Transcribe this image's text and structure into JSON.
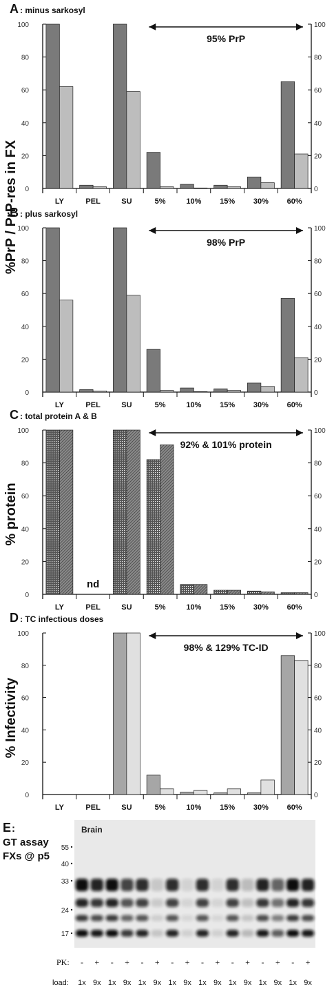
{
  "figure": {
    "y_axis_label_top": "%PrP / PrP-res in FX",
    "y_axis_label_protein": "% protein",
    "y_axis_label_infectivity": "% Infectivity"
  },
  "chart_data": [
    {
      "type": "bar",
      "panel_letter": "A",
      "title": ": minus sarkosyl",
      "annotation": "95% PrP",
      "categories": [
        "LY",
        "PEL",
        "SU",
        "5%",
        "10%",
        "15%",
        "30%",
        "60%"
      ],
      "ylim": [
        0,
        100
      ],
      "yticks": [
        0,
        20,
        40,
        60,
        80,
        100
      ],
      "series": [
        {
          "color": "#7a7a7a",
          "values": [
            100,
            2,
            100,
            22,
            2.5,
            2,
            7,
            65
          ]
        },
        {
          "color": "#bdbdbd",
          "values": [
            62,
            1,
            59,
            1,
            0.3,
            1,
            3.5,
            21
          ]
        }
      ]
    },
    {
      "type": "bar",
      "panel_letter": "B",
      "title": ": plus sarkosyl",
      "annotation": "98% PrP",
      "categories": [
        "LY",
        "PEL",
        "SU",
        "5%",
        "10%",
        "15%",
        "30%",
        "60%"
      ],
      "ylim": [
        0,
        100
      ],
      "yticks": [
        0,
        20,
        40,
        60,
        80,
        100
      ],
      "series": [
        {
          "color": "#7a7a7a",
          "values": [
            100,
            1.5,
            100,
            26,
            2.5,
            2,
            5.5,
            57
          ]
        },
        {
          "color": "#bdbdbd",
          "values": [
            56,
            0.7,
            59,
            1,
            0.3,
            1,
            3.5,
            21
          ]
        }
      ]
    },
    {
      "type": "bar",
      "panel_letter": "C",
      "title": ": total protein A & B",
      "annotation": "92% & 101% protein",
      "categories": [
        "LY",
        "PEL",
        "SU",
        "5%",
        "10%",
        "15%",
        "30%",
        "60%"
      ],
      "missing_label": "nd",
      "missing_category": "PEL",
      "ylim": [
        0,
        100
      ],
      "yticks": [
        0,
        20,
        40,
        60,
        80,
        100
      ],
      "series": [
        {
          "pattern": "dots",
          "values": [
            100,
            null,
            100,
            82,
            6,
            2.5,
            2,
            1
          ]
        },
        {
          "pattern": "hatch",
          "values": [
            100,
            null,
            100,
            91,
            6,
            2.5,
            1.5,
            1
          ]
        }
      ]
    },
    {
      "type": "bar",
      "panel_letter": "D",
      "title": ": TC infectious doses",
      "annotation": "98% & 129% TC-ID",
      "categories": [
        "LY",
        "PEL",
        "SU",
        "5%",
        "10%",
        "15%",
        "30%",
        "60%"
      ],
      "ylim": [
        0,
        100
      ],
      "yticks": [
        0,
        20,
        40,
        60,
        80,
        100
      ],
      "series": [
        {
          "color": "#a6a6a6",
          "values": [
            0,
            0,
            100,
            12,
            1.5,
            1,
            1,
            86
          ]
        },
        {
          "color": "#e0e0e0",
          "values": [
            0,
            0,
            100,
            3.5,
            2.5,
            3.5,
            9,
            83
          ]
        }
      ]
    }
  ],
  "blot": {
    "panel_letter": "E",
    "title_lines": [
      ":",
      "GT assay",
      "FXs @ p5"
    ],
    "tissue_label": "Brain",
    "markers": [
      "55",
      "40",
      "33",
      "24",
      "17"
    ],
    "pk_label": "PK:",
    "load_label": "load:",
    "pk_values": [
      "-",
      "+",
      "-",
      "+",
      "-",
      "+",
      "-",
      "+",
      "-",
      "+",
      "-",
      "+",
      "-",
      "+",
      "-",
      "+"
    ],
    "load_values": [
      "1x",
      "9x",
      "1x",
      "9x",
      "1x",
      "9x",
      "1x",
      "9x",
      "1x",
      "9x",
      "1x",
      "9x",
      "1x",
      "9x",
      "1x",
      "9x"
    ],
    "lane_signal": [
      1.0,
      0.9,
      1.0,
      0.75,
      0.85,
      0.15,
      0.85,
      0.1,
      0.85,
      0.1,
      0.85,
      0.2,
      0.9,
      0.6,
      1.0,
      0.9
    ]
  }
}
